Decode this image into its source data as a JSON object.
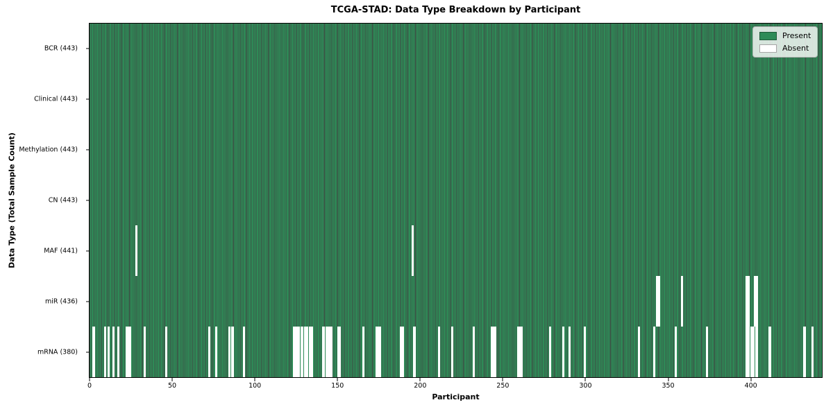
{
  "figure": {
    "title": "TCGA-STAD: Data Type Breakdown by Participant",
    "xlabel": "Participant",
    "ylabel": "Data Type (Total Sample Count)"
  },
  "legend": {
    "items": [
      {
        "label": "Present",
        "color": "#2e8b57"
      },
      {
        "label": "Absent",
        "color": "#ffffff"
      }
    ]
  },
  "colors": {
    "present": "#2e8b57",
    "absent": "#ffffff",
    "bar_edge": "rgba(0,0,0,0.75)",
    "row_divider": "rgba(0,0,0,0.9)",
    "axis": "#000000",
    "legend_bg": "rgba(255,255,255,0.8)",
    "legend_border": "#b3b3b3"
  },
  "chart_data": {
    "type": "heatmap",
    "title": "TCGA-STAD: Data Type Breakdown by Participant",
    "xlabel": "Participant",
    "ylabel": "Data Type (Total Sample Count)",
    "n_participants": 443,
    "x_range": [
      0,
      443
    ],
    "x_ticks": [
      0,
      50,
      100,
      150,
      200,
      250,
      300,
      350,
      400
    ],
    "grid": false,
    "legend": [
      "Present",
      "Absent"
    ],
    "legend_position": "upper right",
    "rows": [
      {
        "id": "bcr",
        "label": "BCR (443)",
        "data_type": "BCR",
        "present_count": 443,
        "absent_count": 0,
        "absent_participants": []
      },
      {
        "id": "clinical",
        "label": "Clinical (443)",
        "data_type": "Clinical",
        "present_count": 443,
        "absent_count": 0,
        "absent_participants": []
      },
      {
        "id": "methylation",
        "label": "Methylation (443)",
        "data_type": "Methylation",
        "present_count": 443,
        "absent_count": 0,
        "absent_participants": []
      },
      {
        "id": "cn",
        "label": "CN (443)",
        "data_type": "CN",
        "present_count": 443,
        "absent_count": 0,
        "absent_participants": []
      },
      {
        "id": "maf",
        "label": "MAF (441)",
        "data_type": "MAF",
        "present_count": 441,
        "absent_count": 2,
        "absent_participants": [
          28,
          195
        ]
      },
      {
        "id": "mir",
        "label": "miR (436)",
        "data_type": "miR",
        "present_count": 436,
        "absent_count": 7,
        "absent_participants": [
          343,
          344,
          358,
          397,
          398,
          402,
          403
        ]
      },
      {
        "id": "mrna",
        "label": "mRNA (380)",
        "data_type": "mRNA",
        "present_count": 380,
        "absent_count": 63,
        "absent_participants": [
          2,
          9,
          11,
          14,
          17,
          22,
          23,
          24,
          33,
          46,
          72,
          76,
          84,
          86,
          93,
          123,
          124,
          125,
          126,
          128,
          130,
          131,
          133,
          134,
          141,
          143,
          144,
          145,
          146,
          150,
          151,
          165,
          173,
          174,
          175,
          188,
          189,
          196,
          211,
          219,
          232,
          243,
          244,
          245,
          259,
          260,
          261,
          278,
          286,
          290,
          299,
          332,
          341,
          354,
          373,
          397,
          398,
          400,
          401,
          403,
          411,
          432,
          437
        ]
      }
    ]
  }
}
